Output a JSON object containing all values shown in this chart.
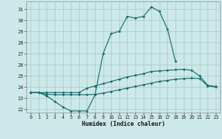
{
  "xlabel": "Humidex (Indice chaleur)",
  "background_color": "#cce8e8",
  "grid_color": "#aacccc",
  "line_color": "#1a6e6e",
  "xlim": [
    -0.5,
    23.5
  ],
  "ylim": [
    21.7,
    31.7
  ],
  "yticks": [
    22,
    23,
    24,
    25,
    26,
    27,
    28,
    29,
    30,
    31
  ],
  "xticks": [
    0,
    1,
    2,
    3,
    4,
    5,
    6,
    7,
    8,
    9,
    10,
    11,
    12,
    13,
    14,
    15,
    16,
    17,
    18,
    19,
    20,
    21,
    22,
    23
  ],
  "line1_x": [
    0,
    1,
    2,
    3,
    4,
    5,
    6,
    7,
    8,
    9,
    10,
    11,
    12,
    13,
    14,
    15,
    16,
    17,
    18
  ],
  "line1_y": [
    23.5,
    23.5,
    23.2,
    22.7,
    22.2,
    21.85,
    21.85,
    21.85,
    23.3,
    27.0,
    28.8,
    29.0,
    30.35,
    30.2,
    30.35,
    31.2,
    30.8,
    29.2,
    26.3
  ],
  "line2_x": [
    0,
    1,
    2,
    3,
    4,
    5,
    6,
    7,
    8,
    9,
    10,
    11,
    12,
    13,
    14,
    15,
    16,
    17,
    18,
    19,
    20,
    21,
    22,
    23
  ],
  "line2_y": [
    23.5,
    23.5,
    23.5,
    23.5,
    23.5,
    23.5,
    23.5,
    23.9,
    24.1,
    24.3,
    24.5,
    24.7,
    24.9,
    25.05,
    25.2,
    25.4,
    25.45,
    25.5,
    25.55,
    25.6,
    25.5,
    25.0,
    24.15,
    24.05
  ],
  "line3_x": [
    0,
    1,
    2,
    3,
    4,
    5,
    6,
    7,
    8,
    9,
    10,
    11,
    12,
    13,
    14,
    15,
    16,
    17,
    18,
    19,
    20,
    21,
    22,
    23
  ],
  "line3_y": [
    23.5,
    23.5,
    23.35,
    23.3,
    23.3,
    23.3,
    23.3,
    23.3,
    23.35,
    23.45,
    23.6,
    23.75,
    23.9,
    24.05,
    24.2,
    24.35,
    24.5,
    24.6,
    24.7,
    24.75,
    24.8,
    24.75,
    24.1,
    24.0
  ]
}
